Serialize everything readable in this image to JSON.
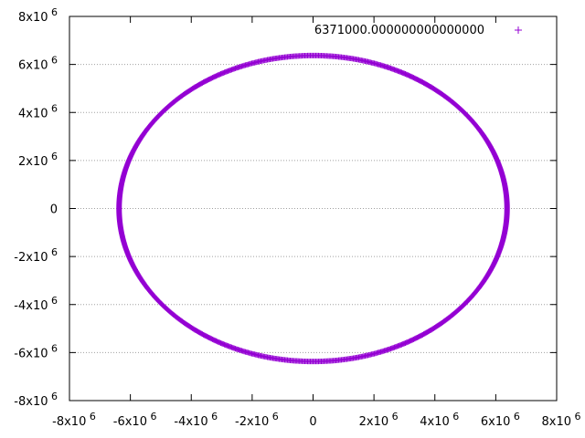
{
  "chart_data": {
    "type": "scatter",
    "x_ticks": [
      {
        "value": -8000000,
        "base": "-8x10",
        "exp": "6"
      },
      {
        "value": -6000000,
        "base": "-6x10",
        "exp": "6"
      },
      {
        "value": -4000000,
        "base": "-4x10",
        "exp": "6"
      },
      {
        "value": -2000000,
        "base": "-2x10",
        "exp": "6"
      },
      {
        "value": 0,
        "base": "0",
        "exp": ""
      },
      {
        "value": 2000000,
        "base": "2x10",
        "exp": "6"
      },
      {
        "value": 4000000,
        "base": "4x10",
        "exp": "6"
      },
      {
        "value": 6000000,
        "base": "6x10",
        "exp": "6"
      },
      {
        "value": 8000000,
        "base": "8x10",
        "exp": "6"
      }
    ],
    "y_ticks": [
      {
        "value": 8000000,
        "base": "8x10",
        "exp": "6"
      },
      {
        "value": 6000000,
        "base": "6x10",
        "exp": "6"
      },
      {
        "value": 4000000,
        "base": "4x10",
        "exp": "6"
      },
      {
        "value": 2000000,
        "base": "2x10",
        "exp": "6"
      },
      {
        "value": 0,
        "base": "0",
        "exp": ""
      },
      {
        "value": -2000000,
        "base": "-2x10",
        "exp": "6"
      },
      {
        "value": -4000000,
        "base": "-4x10",
        "exp": "6"
      },
      {
        "value": -6000000,
        "base": "-6x10",
        "exp": "6"
      },
      {
        "value": -8000000,
        "base": "-8x10",
        "exp": "6"
      }
    ],
    "xlim": [
      -8000000,
      8000000
    ],
    "ylim": [
      -8000000,
      8000000
    ],
    "grid": "horizontal dotted lines at y ticks",
    "legend": "top-right",
    "series": [
      {
        "name": "6371000.000000000000000",
        "marker": "+",
        "color": "#9400d3",
        "shape": "circle",
        "center": [
          0,
          0
        ],
        "radius": 6371000
      }
    ]
  }
}
